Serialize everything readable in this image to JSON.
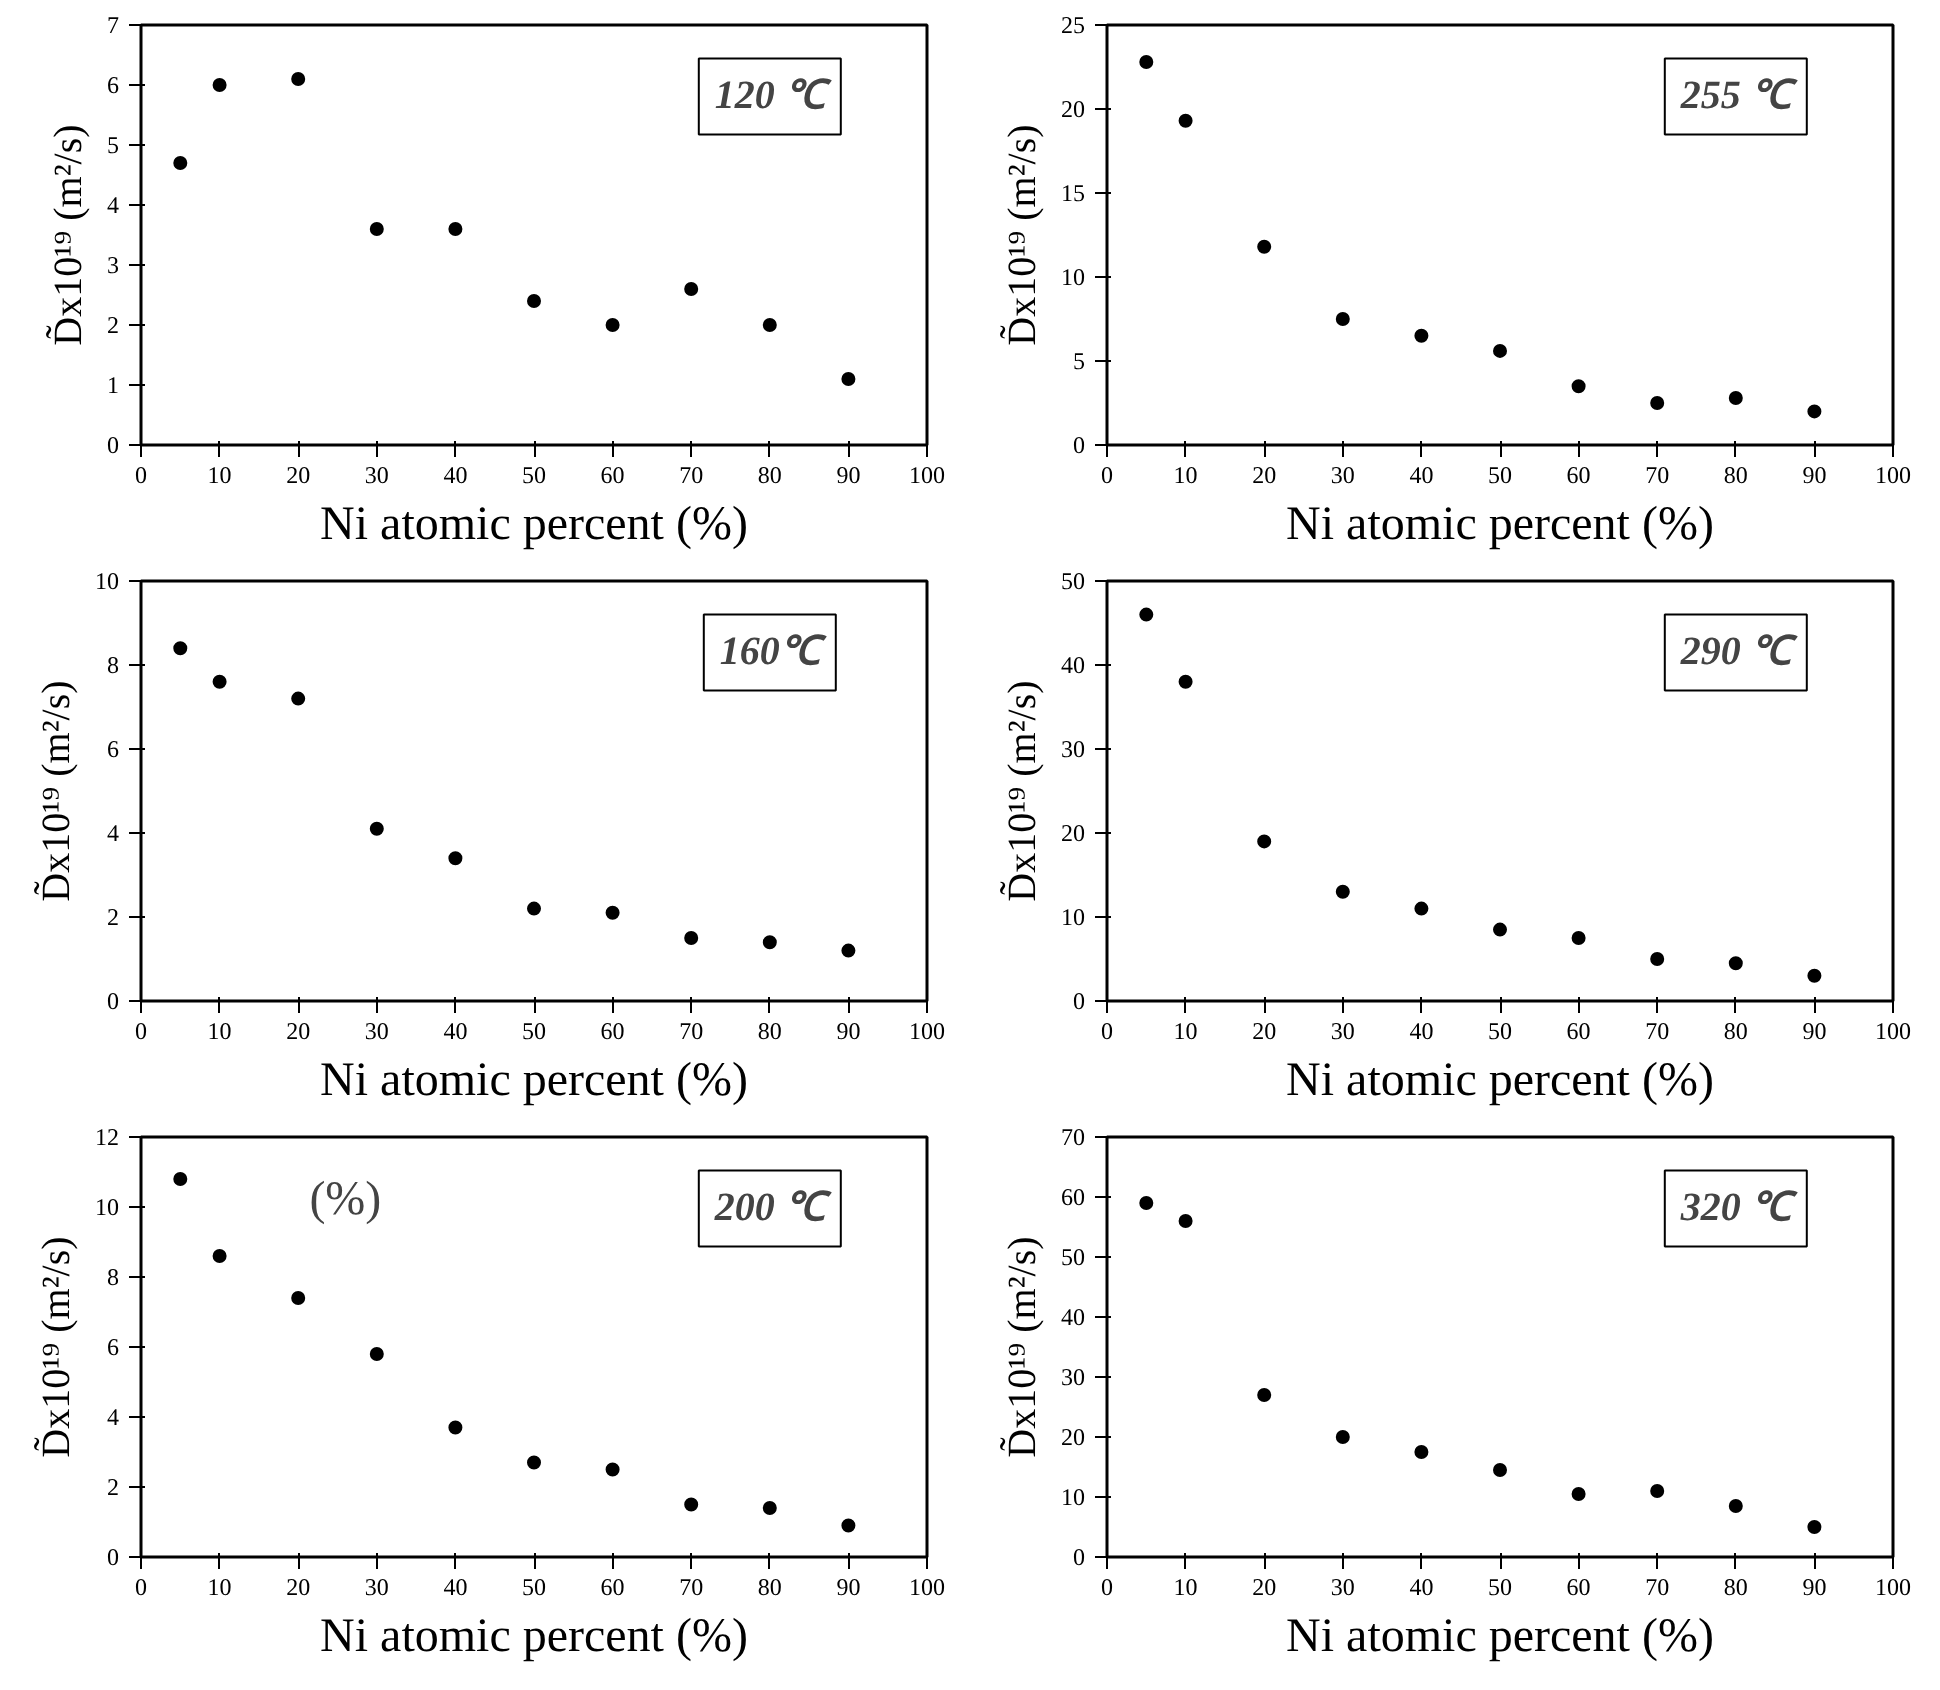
{
  "chart_data": [
    {
      "type": "scatter",
      "x": [
        5,
        10,
        20,
        30,
        40,
        50,
        60,
        70,
        80,
        90
      ],
      "values": [
        4.7,
        6.0,
        6.1,
        3.6,
        3.6,
        2.4,
        2.0,
        2.6,
        2.0,
        1.1
      ],
      "color": "#000000",
      "marker": "circle",
      "xlabel": "Ni atomic percent (%)",
      "ylabel": "D̃x10¹⁹ (m²/s)",
      "xlim": [
        0,
        100
      ],
      "xticks": [
        0,
        10,
        20,
        30,
        40,
        50,
        60,
        70,
        80,
        90,
        100
      ],
      "ylim": [
        0,
        7
      ],
      "yticks": [
        0,
        1,
        2,
        3,
        4,
        5,
        6,
        7
      ],
      "grid": false,
      "annotations": [
        "120 ℃"
      ]
    },
    {
      "type": "scatter",
      "x": [
        5,
        10,
        20,
        30,
        40,
        50,
        60,
        70,
        80,
        90
      ],
      "values": [
        22.8,
        19.3,
        11.8,
        7.5,
        6.5,
        5.6,
        3.5,
        2.5,
        2.8,
        2.0
      ],
      "color": "#000000",
      "marker": "circle",
      "xlabel": "Ni atomic percent (%)",
      "ylabel": "D̃x10¹⁹ (m²/s)",
      "xlim": [
        0,
        100
      ],
      "xticks": [
        0,
        10,
        20,
        30,
        40,
        50,
        60,
        70,
        80,
        90,
        100
      ],
      "ylim": [
        0,
        25
      ],
      "yticks": [
        0,
        5,
        10,
        15,
        20,
        25
      ],
      "grid": false,
      "annotations": [
        "255 ℃"
      ]
    },
    {
      "type": "scatter",
      "x": [
        5,
        10,
        20,
        30,
        40,
        50,
        60,
        70,
        80,
        90
      ],
      "values": [
        8.4,
        7.6,
        7.2,
        4.1,
        3.4,
        2.2,
        2.1,
        1.5,
        1.4,
        1.2
      ],
      "color": "#000000",
      "marker": "circle",
      "xlabel": "Ni atomic percent (%)",
      "ylabel": "D̃x10¹⁹ (m²/s)",
      "xlim": [
        0,
        100
      ],
      "xticks": [
        0,
        10,
        20,
        30,
        40,
        50,
        60,
        70,
        80,
        90,
        100
      ],
      "ylim": [
        0,
        10
      ],
      "yticks": [
        0,
        2,
        4,
        6,
        8,
        10
      ],
      "grid": false,
      "annotations": [
        "160℃"
      ]
    },
    {
      "type": "scatter",
      "x": [
        5,
        10,
        20,
        30,
        40,
        50,
        60,
        70,
        80,
        90
      ],
      "values": [
        46,
        38,
        19,
        13,
        11,
        8.5,
        7.5,
        5,
        4.5,
        3
      ],
      "color": "#000000",
      "marker": "circle",
      "xlabel": "Ni atomic percent (%)",
      "ylabel": "D̃x10¹⁹ (m²/s)",
      "xlim": [
        0,
        100
      ],
      "xticks": [
        0,
        10,
        20,
        30,
        40,
        50,
        60,
        70,
        80,
        90,
        100
      ],
      "ylim": [
        0,
        50
      ],
      "yticks": [
        0,
        10,
        20,
        30,
        40,
        50
      ],
      "grid": false,
      "annotations": [
        "290 ℃"
      ]
    },
    {
      "type": "scatter",
      "x": [
        5,
        10,
        20,
        30,
        40,
        50,
        60,
        70,
        80,
        90
      ],
      "values": [
        10.8,
        8.6,
        7.4,
        5.8,
        3.7,
        2.7,
        2.5,
        1.5,
        1.4,
        0.9
      ],
      "color": "#000000",
      "marker": "circle",
      "xlabel": "Ni atomic percent (%)",
      "ylabel": "D̃x10¹⁹ (m²/s)",
      "xlim": [
        0,
        100
      ],
      "xticks": [
        0,
        10,
        20,
        30,
        40,
        50,
        60,
        70,
        80,
        90,
        100
      ],
      "ylim": [
        0,
        12
      ],
      "yticks": [
        0,
        2,
        4,
        6,
        8,
        10,
        12
      ],
      "grid": false,
      "annotations": [
        "200 ℃",
        "(%)"
      ]
    },
    {
      "type": "scatter",
      "x": [
        5,
        10,
        20,
        30,
        40,
        50,
        60,
        70,
        80,
        90
      ],
      "values": [
        59,
        56,
        27,
        20,
        17.5,
        14.5,
        10.5,
        11,
        8.5,
        5
      ],
      "color": "#000000",
      "marker": "circle",
      "xlabel": "Ni atomic percent (%)",
      "ylabel": "D̃x10¹⁹ (m²/s)",
      "xlim": [
        0,
        100
      ],
      "xticks": [
        0,
        10,
        20,
        30,
        40,
        50,
        60,
        70,
        80,
        90,
        100
      ],
      "ylim": [
        0,
        70
      ],
      "yticks": [
        0,
        10,
        20,
        30,
        40,
        50,
        60,
        70
      ],
      "grid": false,
      "annotations": [
        "320 ℃"
      ]
    }
  ]
}
